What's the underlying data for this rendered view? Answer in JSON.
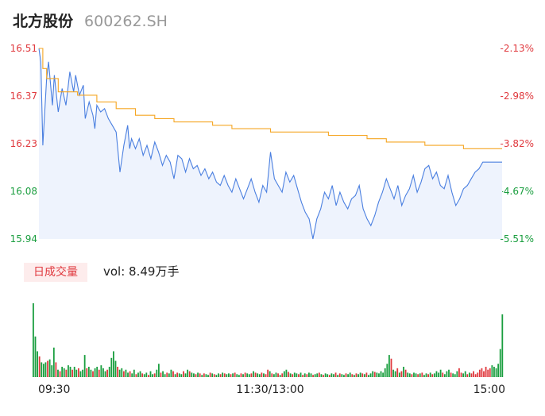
{
  "header": {
    "name": "北方股份",
    "code": "600262.SH"
  },
  "volume_panel": {
    "badge": "日成交量",
    "vol_text": "vol: 8.49万手"
  },
  "colors": {
    "price_line": "#4a7fe0",
    "avg_line": "#f5a623",
    "up": "#e0393e",
    "down": "#1a9e3f",
    "area": "#eef3fd"
  },
  "chart_data": [
    {
      "type": "line",
      "series": [
        {
          "role": "price",
          "x": [
            0,
            1,
            2,
            4,
            5,
            7,
            8,
            10,
            12,
            14,
            16,
            18,
            19,
            21,
            23,
            24,
            26,
            28,
            29,
            30,
            32,
            34,
            36,
            38,
            40,
            42,
            44,
            46,
            47,
            48,
            50,
            52,
            54,
            56,
            58,
            60,
            62,
            64,
            66,
            68,
            70,
            72,
            74,
            76,
            78,
            80,
            82,
            84,
            86,
            88,
            90,
            92,
            94,
            96,
            98,
            100,
            102,
            104,
            106,
            108,
            110,
            112,
            114,
            116,
            118,
            120,
            122,
            124,
            126,
            128,
            130,
            132,
            134,
            136,
            138,
            140,
            142,
            144,
            146,
            148,
            150,
            152,
            154,
            156,
            158,
            160,
            162,
            164,
            166,
            168,
            170,
            172,
            174,
            176,
            178,
            180,
            182,
            184,
            186,
            188,
            190,
            192,
            194,
            196,
            198,
            200,
            202,
            204,
            206,
            208,
            210,
            212,
            214,
            216,
            218,
            220,
            222,
            224,
            226,
            228,
            230,
            232,
            234,
            236,
            238,
            240
          ],
          "values": [
            16.51,
            16.47,
            16.22,
            16.42,
            16.47,
            16.34,
            16.43,
            16.32,
            16.39,
            16.34,
            16.44,
            16.38,
            16.43,
            16.37,
            16.4,
            16.3,
            16.35,
            16.31,
            16.27,
            16.34,
            16.32,
            16.33,
            16.3,
            16.28,
            16.26,
            16.14,
            16.22,
            16.28,
            16.21,
            16.24,
            16.21,
            16.24,
            16.19,
            16.22,
            16.18,
            16.23,
            16.2,
            16.16,
            16.19,
            16.17,
            16.12,
            16.19,
            16.18,
            16.14,
            16.18,
            16.15,
            16.16,
            16.13,
            16.15,
            16.12,
            16.14,
            16.11,
            16.1,
            16.13,
            16.1,
            16.08,
            16.12,
            16.09,
            16.06,
            16.09,
            16.12,
            16.08,
            16.05,
            16.1,
            16.08,
            16.2,
            16.12,
            16.1,
            16.08,
            16.14,
            16.11,
            16.13,
            16.09,
            16.05,
            16.02,
            16.0,
            15.94,
            16.0,
            16.03,
            16.08,
            16.06,
            16.1,
            16.04,
            16.08,
            16.05,
            16.03,
            16.06,
            16.07,
            16.1,
            16.03,
            16.0,
            15.98,
            16.01,
            16.05,
            16.08,
            16.12,
            16.09,
            16.06,
            16.1,
            16.04,
            16.07,
            16.09,
            16.13,
            16.08,
            16.11,
            16.15,
            16.16,
            16.12,
            16.14,
            16.1,
            16.09,
            16.13,
            16.08,
            16.04,
            16.06,
            16.09,
            16.1,
            16.12,
            16.14,
            16.15,
            16.17,
            16.17,
            16.17,
            16.17,
            16.17,
            16.17
          ]
        },
        {
          "role": "avg",
          "x": [
            0,
            2,
            4,
            10,
            20,
            30,
            40,
            50,
            60,
            70,
            80,
            90,
            100,
            110,
            120,
            130,
            140,
            150,
            160,
            170,
            180,
            190,
            200,
            210,
            220,
            230,
            240
          ],
          "values": [
            16.51,
            16.45,
            16.42,
            16.38,
            16.37,
            16.35,
            16.33,
            16.31,
            16.3,
            16.29,
            16.29,
            16.28,
            16.27,
            16.27,
            16.26,
            16.26,
            16.26,
            16.25,
            16.25,
            16.24,
            16.23,
            16.23,
            16.22,
            16.22,
            16.21,
            16.21,
            16.21
          ]
        }
      ],
      "ylim": [
        15.94,
        16.51
      ],
      "y_ticks_left": [
        "16.51",
        "16.37",
        "16.23",
        "16.08",
        "15.94"
      ],
      "y_ticks_right": [
        "-2.13%",
        "-2.98%",
        "-3.82%",
        "-4.67%",
        "-5.51%"
      ]
    },
    {
      "type": "bar",
      "x_ticks": [
        "09:30",
        "11:30/13:00",
        "15:00"
      ],
      "volumes": [
        100,
        55,
        35,
        28,
        20,
        18,
        20,
        22,
        24,
        16,
        40,
        20,
        10,
        8,
        14,
        12,
        10,
        16,
        14,
        10,
        14,
        10,
        12,
        8,
        10,
        30,
        12,
        14,
        10,
        8,
        12,
        14,
        10,
        16,
        12,
        8,
        10,
        14,
        26,
        35,
        22,
        14,
        10,
        12,
        8,
        10,
        6,
        8,
        5,
        10,
        4,
        6,
        8,
        5,
        4,
        6,
        3,
        8,
        4,
        5,
        10,
        18,
        6,
        8,
        4,
        6,
        5,
        10,
        8,
        4,
        6,
        5,
        4,
        8,
        5,
        10,
        8,
        6,
        5,
        4,
        6,
        5,
        3,
        5,
        4,
        3,
        6,
        5,
        4,
        3,
        5,
        4,
        6,
        5,
        4,
        5,
        4,
        5,
        6,
        4,
        3,
        5,
        4,
        6,
        5,
        4,
        5,
        8,
        6,
        5,
        4,
        6,
        5,
        4,
        10,
        8,
        5,
        4,
        6,
        5,
        3,
        5,
        8,
        10,
        7,
        5,
        4,
        6,
        5,
        4,
        6,
        3,
        5,
        4,
        6,
        5,
        3,
        4,
        5,
        6,
        4,
        3,
        5,
        4,
        3,
        5,
        4,
        6,
        3,
        5,
        4,
        3,
        5,
        4,
        6,
        4,
        3,
        5,
        4,
        6,
        5,
        4,
        6,
        3,
        5,
        8,
        7,
        6,
        5,
        8,
        6,
        12,
        18,
        30,
        25,
        10,
        8,
        12,
        6,
        8,
        14,
        10,
        6,
        5,
        4,
        6,
        5,
        4,
        5,
        6,
        3,
        5,
        4,
        6,
        4,
        5,
        8,
        6,
        10,
        6,
        4,
        8,
        10,
        6,
        5,
        4,
        8,
        12,
        6,
        5,
        8,
        4,
        6,
        5,
        8,
        4,
        6,
        10,
        12,
        8,
        14,
        10,
        12,
        16,
        14,
        12,
        18,
        38,
        85
      ],
      "up": [
        false,
        false,
        false,
        true,
        false,
        false,
        false,
        true,
        false,
        false,
        false,
        true,
        false,
        true,
        false,
        false,
        true,
        false,
        false,
        true,
        false,
        false,
        true,
        false,
        false,
        false,
        true,
        false,
        false,
        true,
        false,
        false,
        true,
        false,
        false,
        false,
        true,
        false,
        false,
        false,
        false,
        true,
        false,
        false,
        true,
        false,
        false,
        true,
        false,
        false,
        true,
        false,
        false,
        true,
        false,
        false,
        true,
        false,
        false,
        true,
        false,
        false,
        true,
        false,
        false,
        true,
        false,
        false,
        true,
        false,
        true,
        false,
        false,
        true,
        false,
        false,
        true,
        false,
        false,
        true,
        false,
        true,
        false,
        true,
        false,
        false,
        true,
        false,
        true,
        false,
        false,
        true,
        false,
        true,
        false,
        false,
        true,
        false,
        true,
        false,
        false,
        true,
        false,
        true,
        false,
        false,
        true,
        false,
        true,
        false,
        false,
        true,
        false,
        true,
        true,
        false,
        true,
        false,
        false,
        true,
        false,
        true,
        false,
        false,
        true,
        false,
        true,
        false,
        false,
        true,
        false,
        true,
        false,
        true,
        false,
        false,
        true,
        false,
        false,
        true,
        false,
        true,
        false,
        false,
        true,
        false,
        false,
        true,
        false,
        true,
        false,
        false,
        true,
        false,
        false,
        true,
        false,
        true,
        false,
        false,
        true,
        false,
        true,
        false,
        false,
        false,
        true,
        false,
        false,
        false,
        false,
        false,
        false,
        false,
        true,
        false,
        false,
        true,
        false,
        true,
        false,
        true,
        false,
        false,
        true,
        false,
        false,
        true,
        false,
        true,
        false,
        false,
        true,
        false,
        true,
        false,
        false,
        false,
        false,
        true,
        false,
        false,
        false,
        true,
        false,
        false,
        false,
        true,
        true,
        false,
        false,
        true,
        false,
        true,
        true,
        true,
        true,
        true,
        true,
        true,
        true,
        true,
        true,
        false
      ]
    }
  ]
}
